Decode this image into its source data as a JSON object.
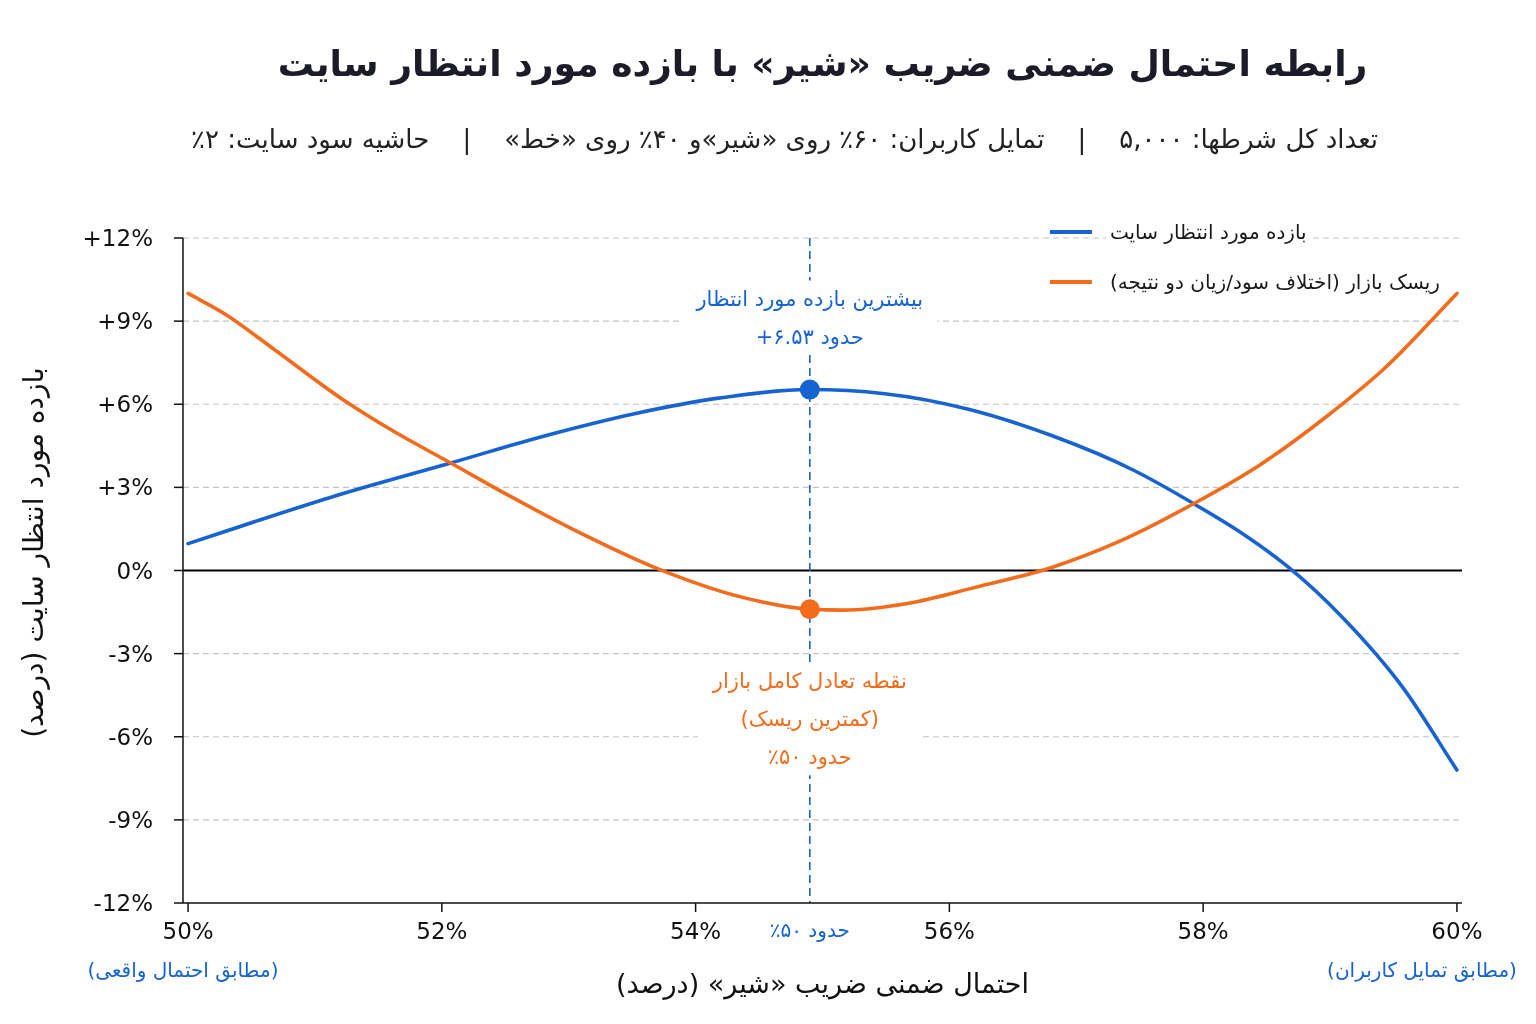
{
  "chart_data": {
    "type": "line",
    "title": "رابطه احتمال ضمنی ضریب «شیر» با بازده مورد انتظار سایت",
    "subtitle": "تعداد کل شرطها: ۵,۰۰۰    |    تمایل کاربران: ۶۰٪ روی «شیر»و ۴۰٪ روی «خط»    |    حاشیه سود سایت: ۲٪",
    "xlabel": "احتمال ضمنی ضریب «شیر» (درصد)",
    "ylabel": "بازده مورد انتظار سایت (درصد)",
    "xlim": [
      49.96,
      60.04
    ],
    "ylim": [
      -12,
      12
    ],
    "xticks": [
      {
        "value": 50,
        "label": "50%"
      },
      {
        "value": 52,
        "label": "52%"
      },
      {
        "value": 54,
        "label": "54%"
      },
      {
        "value": 56,
        "label": "56%"
      },
      {
        "value": 58,
        "label": "58%"
      },
      {
        "value": 60,
        "label": "60%"
      }
    ],
    "yticks": [
      {
        "value": 12,
        "label": "+12%"
      },
      {
        "value": 9,
        "label": "+9%"
      },
      {
        "value": 6,
        "label": "+6%"
      },
      {
        "value": 3,
        "label": "+3%"
      },
      {
        "value": 0,
        "label": "0%"
      },
      {
        "value": -3,
        "label": "-3%"
      },
      {
        "value": -6,
        "label": "-6%"
      },
      {
        "value": -9,
        "label": "-9%"
      },
      {
        "value": -12,
        "label": "-12%"
      }
    ],
    "grid": "y",
    "legend": "top right",
    "series": [
      {
        "name": "بازده مورد انتظار سایت",
        "color": "#1763d1",
        "x": [
          50,
          50.55,
          51.21,
          52.07,
          52.86,
          53.51,
          54.18,
          54.9,
          55.49,
          56.15,
          56.8,
          57.46,
          57.93,
          58.32,
          58.65,
          59.11,
          59.57,
          60
        ],
        "values": [
          0.97,
          1.8,
          2.76,
          3.88,
          4.92,
          5.65,
          6.22,
          6.53,
          6.38,
          5.82,
          4.88,
          3.6,
          2.4,
          1.3,
          0.2,
          -1.75,
          -4.2,
          -7.2
        ]
      },
      {
        "name": "ریسک بازار (اختلاف سود/زیان دو نتیجه)",
        "color": "#f26c1c",
        "x": [
          50,
          50.29,
          50.69,
          51.21,
          51.61,
          52.07,
          52.53,
          53.05,
          53.71,
          54.37,
          54.9,
          55.16,
          55.68,
          56.21,
          56.8,
          57.33,
          57.92,
          58.45,
          58.97,
          59.43,
          60
        ],
        "values": [
          10.0,
          9.26,
          7.94,
          6.2,
          5.05,
          3.88,
          2.7,
          1.45,
          0.05,
          -0.97,
          -1.4,
          -1.43,
          -1.18,
          -0.6,
          0.1,
          1.03,
          2.4,
          3.82,
          5.55,
          7.3,
          10.0
        ]
      },
      {
        "type": "scatter",
        "marker": "circle",
        "color": "#1763d1",
        "x": [
          54.9
        ],
        "values": [
          6.53
        ]
      },
      {
        "type": "scatter",
        "marker": "circle",
        "color": "#f26c1c",
        "x": [
          54.9
        ],
        "values": [
          -1.4
        ]
      }
    ],
    "ref_lines": [
      {
        "axis": "y",
        "value": 0,
        "color": "#000000",
        "line_style": "solid"
      },
      {
        "axis": "x",
        "value": 54.9,
        "label": "حدود ۵۰٪",
        "color": "#1763d1",
        "line_style": "dashed"
      }
    ],
    "annotations": [
      {
        "text": "بیشترین بازده مورد انتظار\nحدود ۶.۵۳+",
        "x": 54.9,
        "y": 6.53
      },
      {
        "text": "نقطه تعادل کامل بازار\n(کمترین ریسک)\nحدود ۵۰٪",
        "x": 54.9,
        "y": -1.4
      },
      "(مطابق احتمال واقعی)",
      "(مطابق تمایل کاربران)"
    ]
  }
}
